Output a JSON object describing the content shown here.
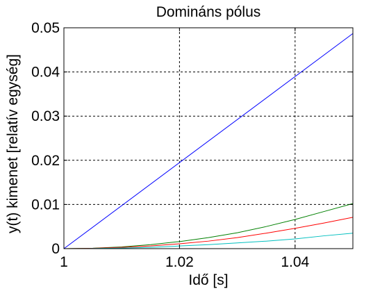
{
  "chart_data": {
    "type": "line",
    "title": "Domináns pólus",
    "xlabel": "Idő [s]",
    "ylabel": "y(t) kimenet [relatív egység]",
    "xlim": [
      1,
      1.05
    ],
    "ylim": [
      0,
      0.05
    ],
    "x_ticks": [
      1,
      1.02,
      1.04
    ],
    "x_tick_labels": [
      "1",
      "1.02",
      "1.04"
    ],
    "y_ticks": [
      0,
      0.01,
      0.02,
      0.03,
      0.04,
      0.05
    ],
    "y_tick_labels": [
      "0",
      "0.01",
      "0.02",
      "0.03",
      "0.04",
      "0.05"
    ],
    "grid": true,
    "series": [
      {
        "color": "#0000ff",
        "x": [
          1,
          1.05
        ],
        "y": [
          0,
          0.0487
        ]
      },
      {
        "color": "#008000",
        "x": [
          1,
          1.005,
          1.01,
          1.015,
          1.02,
          1.025,
          1.03,
          1.035,
          1.04,
          1.045,
          1.05
        ],
        "y": [
          0,
          0.0001,
          0.0004,
          0.0009,
          0.0016,
          0.0025,
          0.0036,
          0.005,
          0.0066,
          0.0084,
          0.0102
        ]
      },
      {
        "color": "#ff0000",
        "x": [
          1,
          1.005,
          1.01,
          1.015,
          1.02,
          1.025,
          1.03,
          1.035,
          1.04,
          1.045,
          1.05
        ],
        "y": [
          0,
          7e-05,
          0.0003,
          0.0006,
          0.0011,
          0.0017,
          0.0025,
          0.0035,
          0.0046,
          0.0058,
          0.0071
        ]
      },
      {
        "color": "#00bfbf",
        "x": [
          1,
          1.005,
          1.01,
          1.015,
          1.02,
          1.025,
          1.03,
          1.035,
          1.04,
          1.045,
          1.05
        ],
        "y": [
          0,
          3e-05,
          0.00014,
          0.0003,
          0.0006,
          0.0009,
          0.0013,
          0.0017,
          0.0022,
          0.0029,
          0.0035
        ]
      }
    ]
  }
}
